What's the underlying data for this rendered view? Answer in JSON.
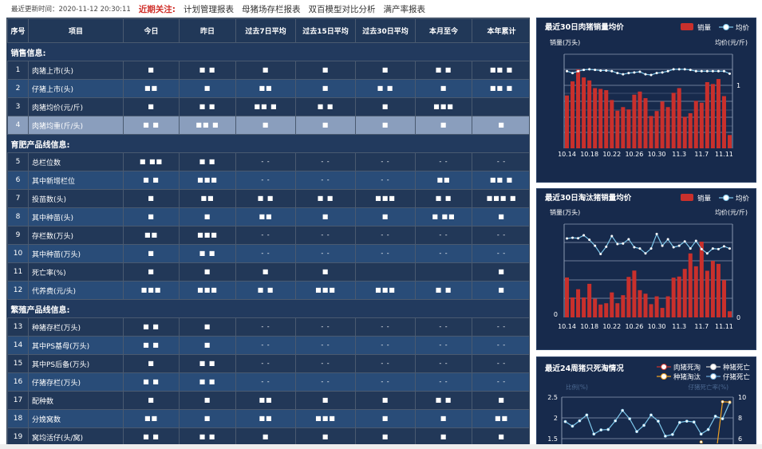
{
  "topbar": {
    "update_label": "最近更新时间：",
    "update_time": "2020-11-12 20:30:11",
    "focus_label": "近期关注:",
    "links": [
      "计划管理报表",
      "母猪场存栏报表",
      "双百模型对比分析",
      "满产率报表"
    ]
  },
  "table": {
    "headers": [
      "序号",
      "项目",
      "今日",
      "昨日",
      "过去7日平均",
      "过去15日平均",
      "过去30日平均",
      "本月至今",
      "本年累计"
    ],
    "sections": [
      {
        "title": "销售信息:",
        "rows": [
          {
            "no": "1",
            "name": "肉猪上市(头)",
            "values": [
              "■",
              "■ ■",
              "■",
              "■",
              "■",
              "■ ■",
              "■■ ■"
            ]
          },
          {
            "no": "2",
            "name": "仔猪上市(头)",
            "values": [
              "■■",
              "■",
              "■■",
              "■",
              "■ ■",
              "■",
              "■■ ■"
            ]
          },
          {
            "no": "3",
            "name": "肉猪均价(元/斤)",
            "values": [
              "■",
              "■ ■",
              "■■ ■",
              "■ ■",
              "■",
              "■■■",
              ""
            ]
          },
          {
            "no": "4",
            "name": "肉猪均重(斤/头)",
            "values": [
              "■ ■",
              "■■ ■",
              "■",
              "■",
              "■",
              "■",
              "■"
            ]
          }
        ]
      },
      {
        "title": "育肥产品线信息:",
        "rows": [
          {
            "no": "5",
            "name": "总栏位数",
            "values": [
              "■ ■■",
              "■ ■",
              "- -",
              "- -",
              "- -",
              "- -",
              "- -"
            ]
          },
          {
            "no": "6",
            "name": "其中新增栏位",
            "values": [
              "■ ■",
              "■■■",
              "- -",
              "- -",
              "- -",
              "■■",
              "■■ ■"
            ]
          },
          {
            "no": "7",
            "name": "投苗数(头)",
            "values": [
              "■",
              "■■",
              "■ ■",
              "■ ■",
              "■■■",
              "■ ■",
              "■■■ ■"
            ]
          },
          {
            "no": "8",
            "name": "其中种苗(头)",
            "values": [
              "■",
              "■",
              "■■",
              "■",
              "■",
              "■ ■■",
              "■"
            ]
          },
          {
            "no": "9",
            "name": "存栏数(万头)",
            "values": [
              "■■",
              "■■■",
              "- -",
              "- -",
              "- -",
              "- -",
              "- -"
            ]
          },
          {
            "no": "10",
            "name": "其中种苗(万头)",
            "values": [
              "■",
              "■ ■",
              "- -",
              "- -",
              "- -",
              "- -",
              "- -"
            ]
          },
          {
            "no": "11",
            "name": "死亡率(%)",
            "values": [
              "■",
              "■",
              "■",
              "■",
              "",
              "",
              "■"
            ]
          },
          {
            "no": "12",
            "name": "代养费(元/头)",
            "values": [
              "■■■",
              "■■■",
              "■ ■",
              "■■■",
              "■■■",
              "■ ■",
              "■"
            ]
          }
        ]
      },
      {
        "title": "繁殖产品线信息:",
        "rows": [
          {
            "no": "13",
            "name": "种猪存栏(万头)",
            "values": [
              "■ ■",
              "■",
              "- -",
              "- -",
              "- -",
              "- -",
              "- -"
            ]
          },
          {
            "no": "14",
            "name": "其中PS基母(万头)",
            "values": [
              "■ ■",
              "■",
              "- -",
              "- -",
              "- -",
              "- -",
              "- -"
            ]
          },
          {
            "no": "15",
            "name": "其中PS后备(万头)",
            "values": [
              "■",
              "■ ■",
              "- -",
              "- -",
              "- -",
              "- -",
              "- -"
            ]
          },
          {
            "no": "16",
            "name": "仔猪存栏(万头)",
            "values": [
              "■ ■",
              "■ ■",
              "- -",
              "- -",
              "- -",
              "- -",
              "- -"
            ]
          },
          {
            "no": "17",
            "name": "配种数",
            "values": [
              "■",
              "■",
              "■■",
              "■",
              "■",
              "■ ■",
              "■"
            ]
          },
          {
            "no": "18",
            "name": "分娩窝数",
            "values": [
              "■■",
              "■",
              "■■",
              "■■■",
              "■",
              "■",
              "■■"
            ]
          },
          {
            "no": "19",
            "name": "窝均活仔(头/窝)",
            "values": [
              "■ ■",
              "■ ■",
              "■",
              "■",
              "■",
              "■",
              "■"
            ]
          }
        ]
      }
    ]
  },
  "colors": {
    "bar": "#c9302c",
    "price_line": "#7ec8ec",
    "orange_line": "#f0a020",
    "panel_bg": "#172a4c",
    "table_dark": "#223858",
    "table_light": "#294c78",
    "highlight": "#8a9ebd",
    "focus": "#d0302a"
  },
  "chart_data": [
    {
      "type": "bar+line",
      "title": "最近30日肉猪销量均价",
      "legend": [
        "销量",
        "均价"
      ],
      "legend_position": "top-right",
      "ylabel_left": "销量(万头)",
      "ylabel_right": "均价(元/斤)",
      "right_tick_labels": [
        "1"
      ],
      "x": [
        "10.14",
        "10.15",
        "10.16",
        "10.17",
        "10.18",
        "10.19",
        "10.20",
        "10.21",
        "10.22",
        "10.23",
        "10.24",
        "10.25",
        "10.26",
        "10.27",
        "10.28",
        "10.29",
        "10.30",
        "10.31",
        "11.1",
        "11.2",
        "11.3",
        "11.4",
        "11.5",
        "11.6",
        "11.7",
        "11.8",
        "11.9",
        "11.10",
        "11.11",
        "11.12"
      ],
      "x_tick_labels": [
        "10.14",
        "10.18",
        "10.22",
        "10.26",
        "10.30",
        "11.3",
        "11.7",
        "11.11"
      ],
      "ylim_left": [
        0,
        6
      ],
      "ylim_right": [
        0,
        1.5
      ],
      "bars": [
        3.37,
        4.27,
        5.03,
        4.52,
        4.33,
        3.84,
        3.79,
        3.71,
        3.08,
        2.4,
        2.63,
        2.48,
        3.42,
        3.62,
        3.2,
        2.06,
        2.38,
        2.99,
        2.63,
        3.54,
        3.84,
        2.01,
        2.24,
        3.03,
        2.91,
        4.22,
        4.1,
        4.42,
        3.33,
        0.85
      ],
      "line": [
        1.23,
        1.2,
        1.23,
        1.25,
        1.26,
        1.25,
        1.24,
        1.24,
        1.23,
        1.2,
        1.18,
        1.2,
        1.21,
        1.22,
        1.18,
        1.17,
        1.2,
        1.21,
        1.23,
        1.26,
        1.26,
        1.26,
        1.25,
        1.23,
        1.23,
        1.23,
        1.23,
        1.23,
        1.23,
        1.19
      ]
    },
    {
      "type": "bar+line",
      "title": "最近30日淘汰猪销量均价",
      "legend": [
        "销量",
        "均价"
      ],
      "legend_position": "top-right",
      "ylabel_left": "销量(万头)",
      "ylabel_right": "均价(元/斤)",
      "left_tick_labels": [
        "0"
      ],
      "right_tick_labels": [
        "0"
      ],
      "x": [
        "10.14",
        "10.15",
        "10.16",
        "10.17",
        "10.18",
        "10.19",
        "10.20",
        "10.21",
        "10.22",
        "10.23",
        "10.24",
        "10.25",
        "10.26",
        "10.27",
        "10.28",
        "10.29",
        "10.30",
        "10.31",
        "11.1",
        "11.2",
        "11.3",
        "11.4",
        "11.5",
        "11.6",
        "11.7",
        "11.8",
        "11.9",
        "11.10",
        "11.11",
        "11.12"
      ],
      "x_tick_labels": [
        "10.14",
        "10.18",
        "10.22",
        "10.26",
        "10.30",
        "11.3",
        "11.7",
        "11.11"
      ],
      "ylim_left": [
        0,
        5
      ],
      "ylim_right": [
        0,
        5
      ],
      "bars": [
        2.14,
        1.07,
        1.51,
        1.07,
        1.8,
        1.0,
        0.69,
        0.76,
        1.34,
        0.76,
        1.19,
        2.17,
        2.51,
        1.46,
        1.27,
        0.71,
        1.13,
        0.51,
        1.13,
        2.13,
        2.19,
        2.6,
        3.43,
        2.74,
        4.06,
        2.5,
        3.03,
        2.87,
        2.0,
        0.33
      ],
      "line": [
        4.23,
        4.27,
        4.24,
        4.4,
        4.16,
        3.84,
        3.4,
        3.79,
        4.36,
        3.93,
        3.96,
        4.19,
        3.76,
        3.69,
        3.43,
        3.69,
        4.47,
        3.84,
        4.19,
        3.76,
        3.84,
        4.07,
        3.69,
        4.1,
        3.66,
        3.43,
        3.69,
        3.66,
        3.81,
        3.69
      ]
    },
    {
      "type": "line",
      "title": "最近24周猪只死淘情况",
      "legend": [
        "肉猪死淘",
        "种猪死亡",
        "种猪淘汰",
        "仔猪死亡"
      ],
      "legend_position": "top-right",
      "ylabel_left": "比例(%)",
      "ylabel_right": "仔猪死亡率(%)",
      "left_tick_labels": [
        "2.5",
        "2",
        "1.5"
      ],
      "right_tick_labels": [
        "10",
        "8",
        "6"
      ],
      "ylim_left": [
        1.5,
        2.5
      ],
      "ylim_right": [
        6,
        10
      ],
      "series": [
        {
          "name": "仔猪死亡",
          "color": "#7ec8ec",
          "values": [
            1.91,
            1.8,
            1.93,
            2.07,
            1.61,
            1.71,
            1.72,
            1.93,
            2.18,
            1.98,
            1.67,
            1.82,
            2.07,
            1.92,
            1.56,
            1.6,
            1.89,
            1.92,
            1.9,
            1.61,
            1.72,
            2.04,
            1.98,
            2.37
          ]
        },
        {
          "name": "种猪淘汰",
          "color": "#f0a020",
          "values": [
            null,
            null,
            null,
            null,
            null,
            null,
            null,
            null,
            null,
            null,
            null,
            null,
            null,
            null,
            null,
            null,
            null,
            null,
            null,
            1.42,
            null,
            1.0,
            2.39,
            2.38
          ]
        }
      ]
    }
  ]
}
